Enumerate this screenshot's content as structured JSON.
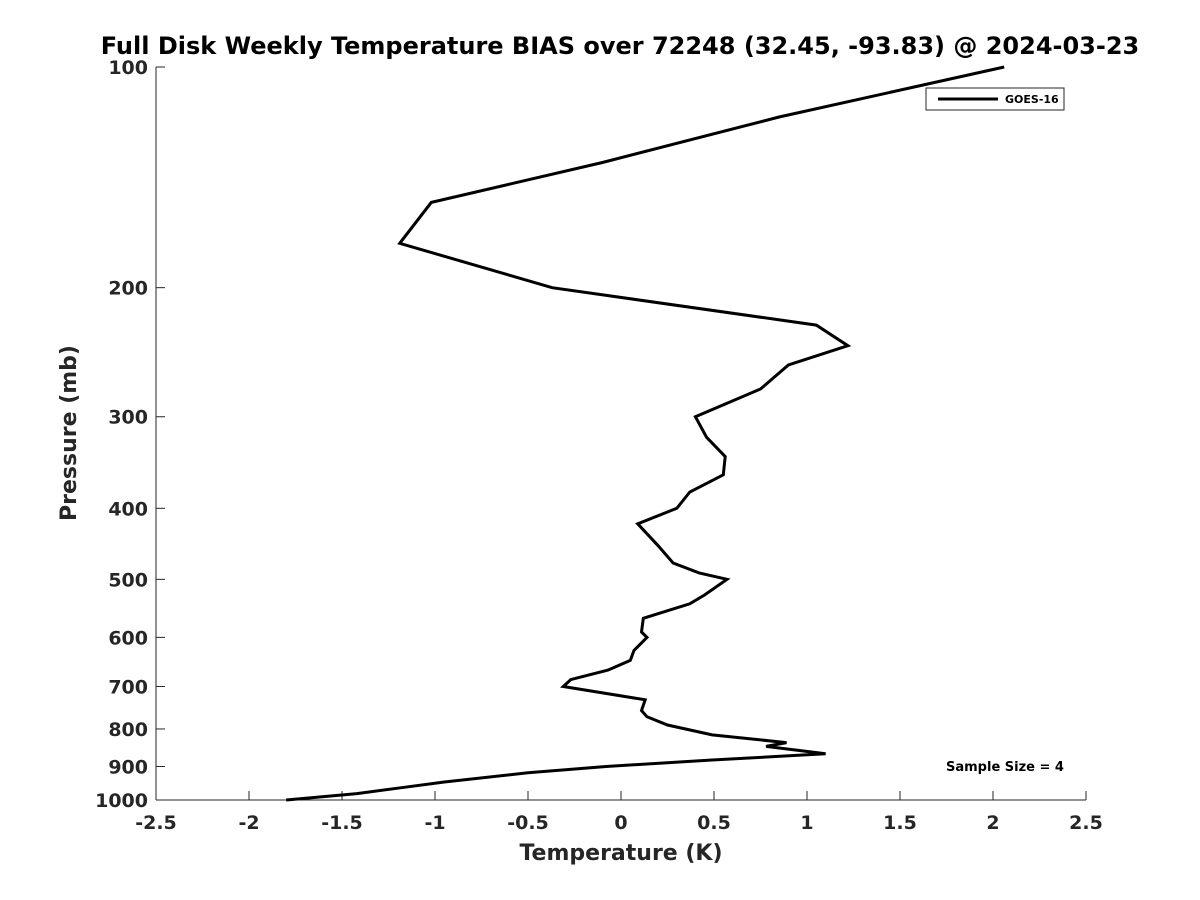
{
  "chart_data": {
    "type": "line",
    "title": "Full Disk Weekly Temperature BIAS over 72248 (32.45, -93.83) @ 2024-03-23",
    "xlabel": "Temperature (K)",
    "ylabel": "Pressure (mb)",
    "xlim": [
      -2.5,
      2.5
    ],
    "ylim": [
      100,
      1000
    ],
    "y_scale": "log",
    "y_reversed": true,
    "x_ticks": [
      -2.5,
      -2,
      -1.5,
      -1,
      -0.5,
      0,
      0.5,
      1,
      1.5,
      2,
      2.5
    ],
    "x_tick_labels": [
      "-2.5",
      "-2",
      "-1.5",
      "-1",
      "-0.5",
      "0",
      "0.5",
      "1",
      "1.5",
      "2",
      "2.5"
    ],
    "y_ticks": [
      100,
      200,
      300,
      400,
      500,
      600,
      700,
      800,
      900,
      1000
    ],
    "y_tick_labels": [
      "100",
      "200",
      "300",
      "400",
      "500",
      "600",
      "700",
      "800",
      "900",
      "1000"
    ],
    "grid": false,
    "legend_position": "top-right",
    "series": [
      {
        "name": "GOES-16",
        "color": "#000000",
        "points": [
          [
            2.06,
            100
          ],
          [
            0.85,
            117
          ],
          [
            -0.1,
            135
          ],
          [
            -1.02,
            153
          ],
          [
            -1.19,
            174
          ],
          [
            -0.37,
            200
          ],
          [
            1.05,
            225
          ],
          [
            1.22,
            240
          ],
          [
            0.9,
            255
          ],
          [
            0.75,
            275
          ],
          [
            0.4,
            300
          ],
          [
            0.46,
            320
          ],
          [
            0.56,
            340
          ],
          [
            0.55,
            360
          ],
          [
            0.37,
            380
          ],
          [
            0.3,
            400
          ],
          [
            0.09,
            420
          ],
          [
            0.2,
            450
          ],
          [
            0.28,
            475
          ],
          [
            0.42,
            490
          ],
          [
            0.57,
            500
          ],
          [
            0.45,
            525
          ],
          [
            0.37,
            540
          ],
          [
            0.12,
            565
          ],
          [
            0.11,
            590
          ],
          [
            0.14,
            600
          ],
          [
            0.07,
            625
          ],
          [
            0.05,
            645
          ],
          [
            -0.07,
            665
          ],
          [
            -0.27,
            685
          ],
          [
            -0.31,
            700
          ],
          [
            0.13,
            730
          ],
          [
            0.11,
            755
          ],
          [
            0.14,
            770
          ],
          [
            0.25,
            790
          ],
          [
            0.49,
            815
          ],
          [
            0.89,
            835
          ],
          [
            0.78,
            845
          ],
          [
            1.1,
            865
          ],
          [
            0.49,
            882
          ],
          [
            -0.08,
            900
          ],
          [
            -0.5,
            918
          ],
          [
            -0.95,
            945
          ],
          [
            -1.18,
            962
          ],
          [
            -1.42,
            980
          ],
          [
            -1.8,
            1000
          ]
        ]
      }
    ],
    "annotations": [
      {
        "text": "Sample Size = 4"
      }
    ]
  }
}
